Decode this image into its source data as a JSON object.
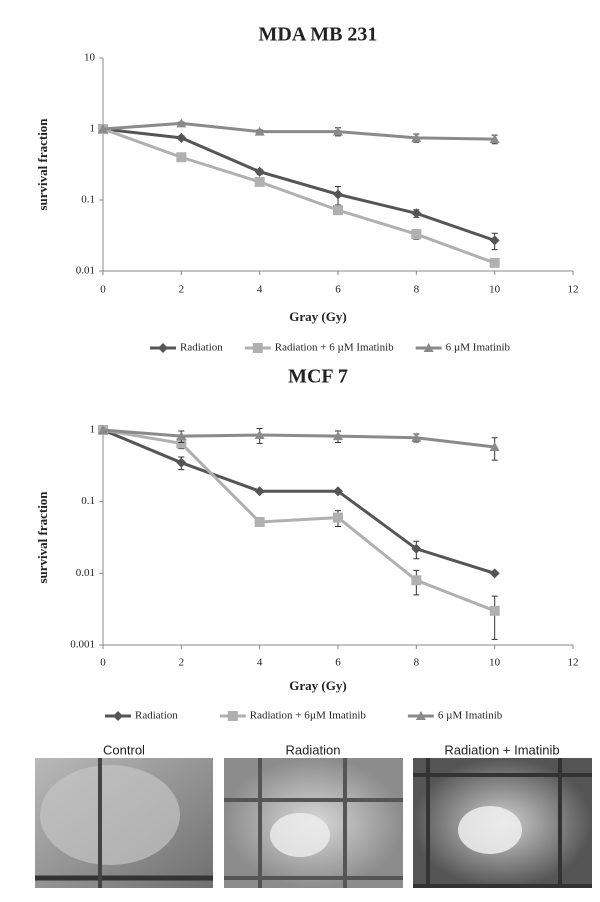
{
  "chart_data": [
    {
      "type": "line",
      "title": "MDA MB 231",
      "x_label": "Gray (Gy)",
      "y_label": "survival fraction",
      "x": [
        0,
        2,
        4,
        6,
        8,
        10
      ],
      "xlim": [
        0,
        12
      ],
      "xticks": [
        0,
        2,
        4,
        6,
        8,
        10,
        12
      ],
      "ylim": [
        0.01,
        10
      ],
      "yticks": [
        0.01,
        0.1,
        1,
        10
      ],
      "log_scale": true,
      "grid": false,
      "series": [
        {
          "name": "Radiation",
          "color": "#555555",
          "marker": "diamond",
          "values": [
            1,
            0.75,
            0.25,
            0.12,
            0.065,
            0.027
          ],
          "errors": [
            0,
            0.05,
            0.02,
            0.035,
            0.008,
            0.007
          ]
        },
        {
          "name": "Radiation + 6 µM Imatinib",
          "color": "#b0b0b0",
          "marker": "square",
          "values": [
            1,
            0.4,
            0.18,
            0.072,
            0.033,
            0.013
          ],
          "errors": [
            0,
            0.04,
            0.02,
            0.008,
            0.005,
            0.0015
          ]
        },
        {
          "name": "6 µM Imatinib",
          "color": "#8a8a8a",
          "marker": "triangle",
          "values": [
            1,
            1.2,
            0.92,
            0.92,
            0.75,
            0.72
          ],
          "errors": [
            0,
            0.05,
            0.05,
            0.12,
            0.1,
            0.1
          ]
        }
      ]
    },
    {
      "type": "line",
      "title": "MCF 7",
      "x_label": "Gray (Gy)",
      "y_label": "survival fraction",
      "x": [
        0,
        2,
        4,
        6,
        8,
        10
      ],
      "xlim": [
        0,
        12
      ],
      "xticks": [
        0,
        2,
        4,
        6,
        8,
        10,
        12
      ],
      "ylim": [
        0.001,
        1
      ],
      "yticks": [
        0.001,
        0.01,
        0.1,
        1
      ],
      "log_scale": true,
      "grid": false,
      "series": [
        {
          "name": "Radiation",
          "color": "#555555",
          "marker": "diamond",
          "values": [
            1,
            0.35,
            0.14,
            0.14,
            0.022,
            0.01
          ],
          "errors": [
            0,
            0.07,
            0,
            0,
            0.006,
            0
          ]
        },
        {
          "name": "Radiation + 6µM Imatinib",
          "color": "#b0b0b0",
          "marker": "square",
          "values": [
            1,
            0.65,
            0.052,
            0.06,
            0.008,
            0.003
          ],
          "errors": [
            0,
            0.1,
            0.005,
            0.015,
            0.003,
            0.0018
          ]
        },
        {
          "name": "6 µM Imatinib",
          "color": "#8a8a8a",
          "marker": "triangle",
          "values": [
            1,
            0.82,
            0.85,
            0.82,
            0.78,
            0.58
          ],
          "errors": [
            0,
            0.15,
            0.2,
            0.15,
            0.1,
            0.2
          ]
        }
      ]
    }
  ],
  "panels": [
    {
      "label": "Control"
    },
    {
      "label": "Radiation"
    },
    {
      "label": "Radiation + Imatinib"
    }
  ]
}
